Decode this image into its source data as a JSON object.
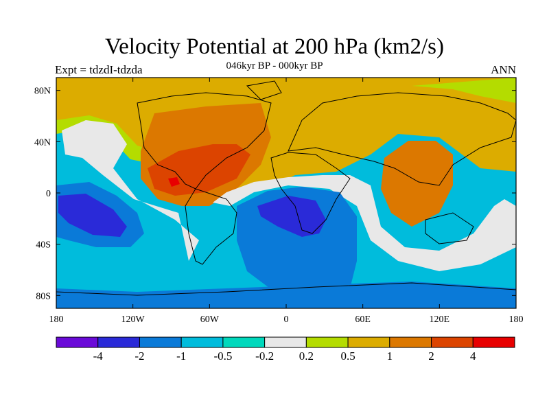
{
  "title": "Velocity Potential at 200 hPa (km2/s)",
  "subtitle": "046kyr BP - 000kyr BP",
  "left_string": "Expt = tdzdI-tdzda",
  "right_string": "ANN",
  "map": {
    "lon_ticks": [
      "180",
      "120W",
      "60W",
      "0",
      "60E",
      "120E",
      "180"
    ],
    "lat_ticks": [
      "80N",
      "40N",
      "0",
      "40S",
      "80S"
    ],
    "lon_range": [
      -180,
      180
    ],
    "lat_range": [
      -90,
      90
    ],
    "ocean_color": "#00bcdc"
  },
  "colorbar": {
    "colors": [
      "#6a0ad8",
      "#2a2ad8",
      "#0a7ad8",
      "#00bcdc",
      "#00d8bc",
      "#e8e8e8",
      "#b4dc00",
      "#dcac00",
      "#dc7800",
      "#dc4400",
      "#e80000"
    ],
    "labels": [
      "-4",
      "-2",
      "-1",
      "-0.5",
      "-0.2",
      "0.2",
      "0.5",
      "1",
      "2",
      "4"
    ]
  }
}
